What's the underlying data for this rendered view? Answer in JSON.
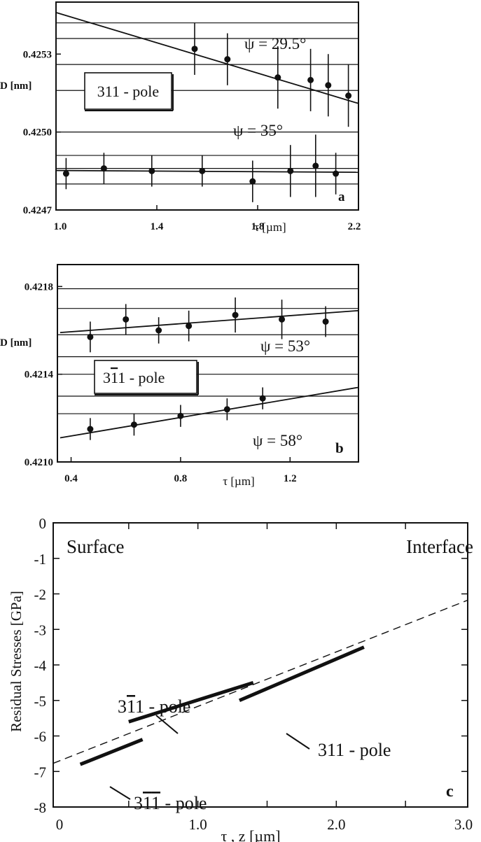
{
  "chart_data": [
    {
      "panel": "a",
      "type": "scatter",
      "ylabel": "D [nm]",
      "xlabel": "τ [µm]",
      "xlim": [
        1.0,
        2.2
      ],
      "ylim": [
        0.4247,
        0.4255
      ],
      "xticks": [
        "1.0",
        "1.4",
        "1.8",
        "2.2"
      ],
      "yticks": [
        "0.4253",
        "0.4250",
        "0.4247"
      ],
      "box_label": "311 - pole",
      "grid": "horizontal",
      "series": [
        {
          "name": "ψ = 29.5°",
          "x": [
            1.55,
            1.68,
            1.88,
            2.01,
            2.08,
            2.16
          ],
          "y": [
            0.42532,
            0.42528,
            0.42521,
            0.4252,
            0.42518,
            0.42514
          ],
          "err": [
            0.0001,
            0.0001,
            0.00012,
            0.00012,
            0.00012,
            0.00012
          ],
          "fit": [
            [
              0.97,
              0.42546
            ],
            [
              2.22,
              0.42511
            ]
          ]
        },
        {
          "name": "ψ = 35°",
          "x": [
            1.04,
            1.19,
            1.38,
            1.58,
            1.78,
            1.93,
            2.03,
            2.11
          ],
          "y": [
            0.42484,
            0.42486,
            0.42485,
            0.42485,
            0.42481,
            0.42485,
            0.42487,
            0.42484
          ],
          "err": [
            6e-05,
            6e-05,
            6e-05,
            6e-05,
            8e-05,
            0.0001,
            0.00012,
            8e-05
          ],
          "fit": [
            [
              0.97,
              0.424852
            ],
            [
              2.22,
              0.424845
            ]
          ]
        }
      ]
    },
    {
      "panel": "b",
      "type": "scatter",
      "ylabel": "D [nm]",
      "xlabel": "τ [µm]",
      "xlim": [
        0.35,
        1.45
      ],
      "ylim": [
        0.421,
        0.4219
      ],
      "xticks": [
        "0.4",
        "0.8",
        "1.2"
      ],
      "yticks": [
        "0.4218",
        "0.4214",
        "0.4210"
      ],
      "box_label_parts": [
        "3",
        "1",
        "1 - pole"
      ],
      "grid": "horizontal",
      "series": [
        {
          "name": "ψ = 53°",
          "x": [
            0.47,
            0.6,
            0.72,
            0.83,
            1.0,
            1.17,
            1.33
          ],
          "y": [
            0.42157,
            0.42165,
            0.4216,
            0.42162,
            0.42167,
            0.42165,
            0.42164
          ],
          "err": [
            0.00014,
            0.00014,
            0.00012,
            0.00014,
            0.00016,
            0.00018,
            0.00014
          ],
          "fit": [
            [
              0.36,
              0.42159
            ],
            [
              1.45,
              0.42169
            ]
          ]
        },
        {
          "name": "ψ = 58°",
          "x": [
            0.47,
            0.63,
            0.8,
            0.97,
            1.1
          ],
          "y": [
            0.42115,
            0.42117,
            0.42121,
            0.42124,
            0.42129
          ],
          "err": [
            0.0001,
            0.0001,
            0.0001,
            0.0001,
            0.0001
          ],
          "fit": [
            [
              0.36,
              0.42111
            ],
            [
              1.45,
              0.42134
            ]
          ]
        }
      ]
    },
    {
      "panel": "c",
      "type": "line",
      "ylabel": "Residual Stresses [GPa]",
      "xlabel": "τ , z  [µm]",
      "xlim": [
        0,
        3.0
      ],
      "ylim": [
        -8,
        0
      ],
      "xticks": [
        "0",
        "1.0",
        "2.0",
        "3.0"
      ],
      "yticks": [
        "0",
        "-1",
        "-2",
        "-3",
        "-4",
        "-5",
        "-6",
        "-7",
        "-8"
      ],
      "left_label": "Surface",
      "right_label": "Interface",
      "series": [
        {
          "name": "311 - pole",
          "x": [
            1.3,
            2.2
          ],
          "y": [
            -5.0,
            -3.5
          ]
        },
        {
          "name": "3-11 - pole",
          "x": [
            0.5,
            1.4
          ],
          "y": [
            -5.6,
            -4.5
          ]
        },
        {
          "name": "3-1-1 - pole",
          "x": [
            0.15,
            0.6
          ],
          "y": [
            -6.8,
            -6.1
          ]
        },
        {
          "name": "fit",
          "style": "dashed",
          "x": [
            0,
            3.0
          ],
          "y": [
            -6.7,
            -2.1
          ]
        }
      ],
      "labels": {
        "l311": "311 - pole",
        "l3b11": [
          "3",
          "1",
          "1 - pole"
        ],
        "l3b1b1": [
          "3",
          "1",
          "1",
          " - pole"
        ]
      }
    }
  ],
  "panel_letters": {
    "a": "a",
    "b": "b",
    "c": "c"
  },
  "a": {
    "psi1": "ψ = 29.5°",
    "psi2": "ψ = 35°"
  },
  "b": {
    "psi1": "ψ = 53°",
    "psi2": "ψ = 58°"
  }
}
